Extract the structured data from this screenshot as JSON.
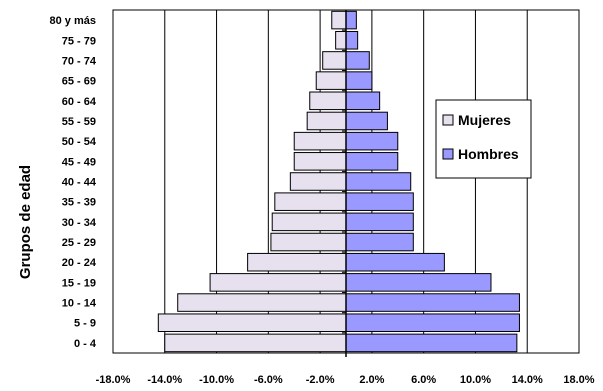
{
  "chart_data": {
    "type": "bar",
    "orientation": "horizontal",
    "subtype": "population-pyramid",
    "title": "",
    "xlabel": "",
    "ylabel": "Grupos de edad",
    "xlim": [
      -18,
      18
    ],
    "x_ticks": [
      -18,
      -14,
      -10,
      -6,
      -2,
      2,
      6,
      10,
      14,
      18
    ],
    "x_tick_labels": [
      "-18.0%",
      "-14.0%",
      "-10.0%",
      "-6.0%",
      "-2.0%",
      "2.0%",
      "6.0%",
      "10.0%",
      "14.0%",
      "18.0%"
    ],
    "grid": true,
    "legend_position": "right",
    "categories": [
      "0 - 4",
      "5 - 9",
      "10 - 14",
      "15 - 19",
      "20 - 24",
      "25 - 29",
      "30 - 34",
      "35 - 39",
      "40 - 44",
      "45 - 49",
      "50 - 54",
      "55 - 59",
      "60 - 64",
      "65 - 69",
      "70 - 74",
      "75 - 79",
      "80 y más"
    ],
    "series": [
      {
        "name": "Mujeres",
        "color": "#e6e0ef",
        "values": [
          -14.0,
          -14.5,
          -13.0,
          -10.5,
          -7.6,
          -5.8,
          -5.7,
          -5.5,
          -4.3,
          -4.0,
          -4.0,
          -3.0,
          -2.8,
          -2.3,
          -1.8,
          -0.8,
          -1.1
        ]
      },
      {
        "name": "Hombres",
        "color": "#9999ff",
        "values": [
          13.2,
          13.4,
          13.4,
          11.2,
          7.6,
          5.2,
          5.2,
          5.2,
          5.0,
          4.0,
          4.0,
          3.2,
          2.6,
          2.0,
          1.8,
          0.9,
          0.8
        ]
      }
    ]
  }
}
